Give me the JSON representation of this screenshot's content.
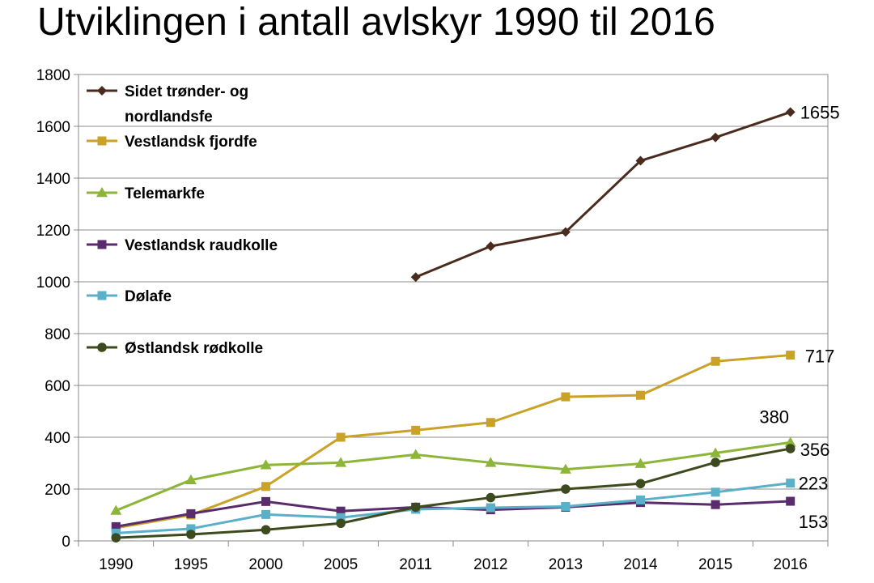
{
  "page": {
    "title": "Utviklingen i antall avlskyr 1990 til 2016"
  },
  "chart_data": {
    "type": "line",
    "title": "Utviklingen i antall avlskyr 1990 til 2016",
    "xlabel": "",
    "ylabel": "",
    "categories": [
      "1990",
      "1995",
      "2000",
      "2005",
      "2011",
      "2012",
      "2013",
      "2014",
      "2015",
      "2016"
    ],
    "ylim": [
      0,
      1800
    ],
    "yticks": [
      0,
      200,
      400,
      600,
      800,
      1000,
      1200,
      1400,
      1600,
      1800
    ],
    "grid": true,
    "legend_position": "top-left",
    "series": [
      {
        "name": "Sidet trønder- og nordlandsfe",
        "legend_lines": [
          "Sidet trønder- og",
          "nordlandsfe"
        ],
        "color": "#4a2c1e",
        "marker": "diamond",
        "values": [
          null,
          null,
          null,
          null,
          1018,
          1137,
          1192,
          1467,
          1557,
          1655
        ],
        "end_label": "1655"
      },
      {
        "name": "Vestlandsk fjordfe",
        "legend_lines": [
          "Vestlandsk fjordfe"
        ],
        "color": "#c9a227",
        "marker": "square",
        "values": [
          50,
          100,
          210,
          400,
          427,
          457,
          556,
          562,
          693,
          717
        ],
        "end_label": "717"
      },
      {
        "name": "Telemarkfe",
        "legend_lines": [
          "Telemarkfe"
        ],
        "color": "#8db53a",
        "marker": "triangle",
        "values": [
          117,
          235,
          293,
          302,
          333,
          302,
          276,
          298,
          339,
          380
        ],
        "end_label": "380"
      },
      {
        "name": "Vestlandsk raudkolle",
        "legend_lines": [
          "Vestlandsk raudkolle"
        ],
        "color": "#5a2c6e",
        "marker": "square",
        "values": [
          55,
          105,
          152,
          115,
          130,
          120,
          130,
          148,
          140,
          153
        ],
        "end_label": "153"
      },
      {
        "name": "Dølafe",
        "legend_lines": [
          "Dølafe"
        ],
        "color": "#5aafc9",
        "marker": "square",
        "values": [
          30,
          47,
          102,
          90,
          122,
          128,
          133,
          158,
          188,
          223
        ],
        "end_label": "223"
      },
      {
        "name": "Østlandsk rødkolle",
        "legend_lines": [
          "Østlandsk rødkolle"
        ],
        "color": "#3d4a1e",
        "marker": "circle",
        "values": [
          12,
          25,
          43,
          68,
          130,
          167,
          200,
          221,
          303,
          356
        ],
        "end_label": "356"
      }
    ]
  }
}
